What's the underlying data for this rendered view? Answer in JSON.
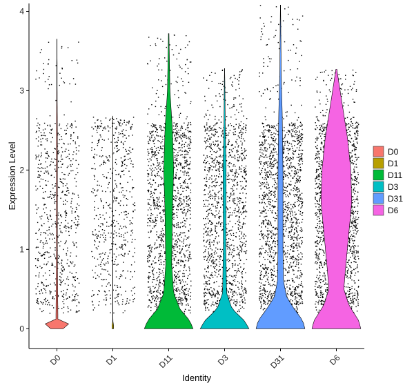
{
  "chart_data": {
    "type": "violin",
    "title": "",
    "xlabel": "Identity",
    "ylabel": "Expression Level",
    "ylim": [
      -0.25,
      4.1
    ],
    "yticks": [
      0,
      1,
      2,
      3,
      4
    ],
    "grid": false,
    "legend_position": "right",
    "categories": [
      "D0",
      "D1",
      "D11",
      "D3",
      "D31",
      "D6"
    ],
    "series": [
      {
        "name": "D0",
        "color": "#F8766D",
        "max": 3.65,
        "zero_fraction": 0.88,
        "profile": [
          [
            0,
            0.25
          ],
          [
            0.05,
            0.55
          ],
          [
            0.12,
            0.04
          ],
          [
            1.0,
            0.02
          ],
          [
            2.0,
            0.02
          ],
          [
            2.4,
            0.02
          ],
          [
            3.0,
            0.01
          ],
          [
            3.65,
            0.005
          ]
        ]
      },
      {
        "name": "D1",
        "color": "#B79F00",
        "max": 2.68,
        "zero_fraction": 0.95,
        "profile": [
          [
            0,
            0.03
          ],
          [
            0.02,
            0.04
          ],
          [
            0.1,
            0.005
          ],
          [
            1.5,
            0.005
          ],
          [
            2.68,
            0.003
          ]
        ]
      },
      {
        "name": "D11",
        "color": "#00BA38",
        "max": 3.72,
        "zero_fraction": 0.45,
        "profile": [
          [
            0,
            0.98
          ],
          [
            0.1,
            0.85
          ],
          [
            0.25,
            0.45
          ],
          [
            0.45,
            0.2
          ],
          [
            0.8,
            0.12
          ],
          [
            1.5,
            0.15
          ],
          [
            2.0,
            0.2
          ],
          [
            2.5,
            0.15
          ],
          [
            3.0,
            0.05
          ],
          [
            3.72,
            0.01
          ]
        ]
      },
      {
        "name": "D3",
        "color": "#00BFC4",
        "max": 3.28,
        "zero_fraction": 0.55,
        "profile": [
          [
            0,
            0.98
          ],
          [
            0.1,
            0.8
          ],
          [
            0.25,
            0.3
          ],
          [
            0.45,
            0.08
          ],
          [
            1.0,
            0.05
          ],
          [
            2.0,
            0.06
          ],
          [
            2.5,
            0.03
          ],
          [
            3.28,
            0.005
          ]
        ]
      },
      {
        "name": "D31",
        "color": "#619CFF",
        "max": 4.08,
        "zero_fraction": 0.35,
        "profile": [
          [
            0,
            0.98
          ],
          [
            0.1,
            0.9
          ],
          [
            0.25,
            0.55
          ],
          [
            0.4,
            0.25
          ],
          [
            0.6,
            0.12
          ],
          [
            1.0,
            0.1
          ],
          [
            2.0,
            0.1
          ],
          [
            2.7,
            0.07
          ],
          [
            3.2,
            0.03
          ],
          [
            4.08,
            0.005
          ]
        ]
      },
      {
        "name": "D6",
        "color": "#F564E3",
        "max": 3.27,
        "zero_fraction": 0.2,
        "profile": [
          [
            0,
            0.98
          ],
          [
            0.1,
            0.9
          ],
          [
            0.3,
            0.5
          ],
          [
            0.5,
            0.3
          ],
          [
            0.8,
            0.38
          ],
          [
            1.2,
            0.5
          ],
          [
            1.6,
            0.62
          ],
          [
            2.0,
            0.58
          ],
          [
            2.4,
            0.45
          ],
          [
            2.8,
            0.25
          ],
          [
            3.1,
            0.1
          ],
          [
            3.27,
            0.02
          ]
        ]
      }
    ]
  }
}
